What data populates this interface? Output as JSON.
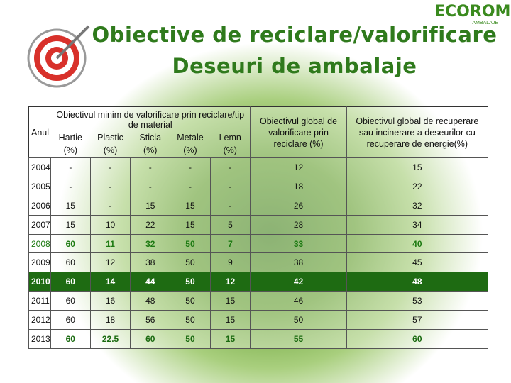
{
  "header": {
    "title_line1": "Obiective de reciclare/valorificare",
    "title_line2": "Deseuri de ambalaje",
    "logo_name": "ECOROM",
    "logo_sub": "AMBALAJE"
  },
  "table": {
    "year_header": "Anul",
    "group_header": "Obiectivul minim de valorificare prin reciclare/tip de material",
    "materials": [
      "Hartie (%)",
      "Plastic (%)",
      "Sticla (%)",
      "Metale (%)",
      "Lemn (%)"
    ],
    "global_headers": [
      "Obiectivul global de valorificare prin reciclare (%)",
      "Obiectivul global de recuperare sau incinerare a deseurilor cu recuperare de energie(%)"
    ],
    "rows": [
      [
        2004,
        "-",
        "-",
        "-",
        "-",
        "-",
        12,
        15
      ],
      [
        2005,
        "-",
        "-",
        "-",
        "-",
        "-",
        18,
        22
      ],
      [
        2006,
        15,
        "-",
        15,
        15,
        "-",
        26,
        32
      ],
      [
        2007,
        15,
        10,
        22,
        15,
        5,
        28,
        34
      ],
      [
        2008,
        60,
        11,
        32,
        50,
        7,
        33,
        40
      ],
      [
        2009,
        60,
        12,
        38,
        50,
        9,
        38,
        45
      ],
      [
        2010,
        60,
        14,
        44,
        50,
        12,
        42,
        48
      ],
      [
        2011,
        60,
        16,
        48,
        50,
        15,
        46,
        53
      ],
      [
        2012,
        60,
        18,
        56,
        50,
        15,
        50,
        57
      ],
      [
        2013,
        60,
        22.5,
        60,
        50,
        15,
        55,
        60
      ]
    ]
  }
}
